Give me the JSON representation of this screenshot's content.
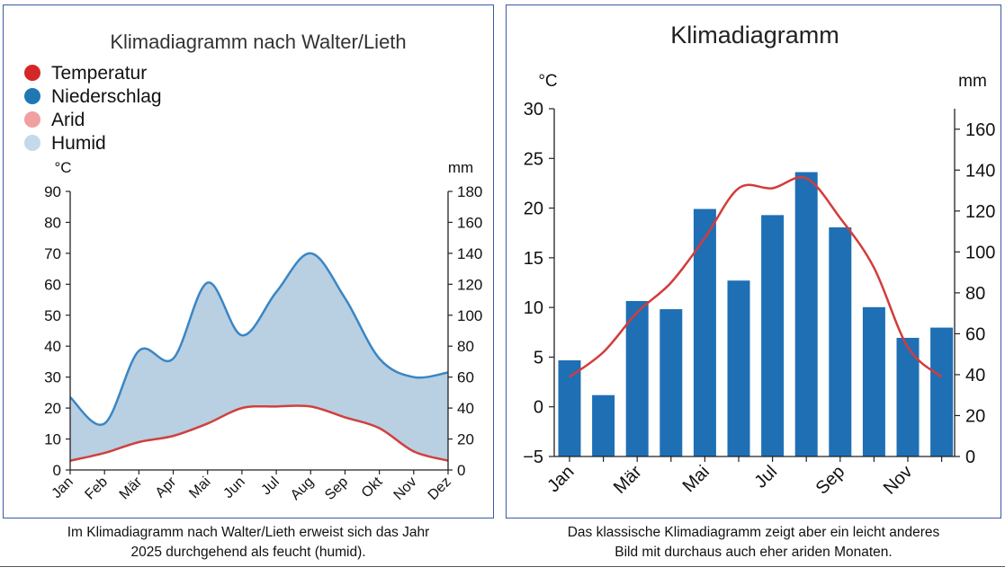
{
  "left_caption": {
    "line1": "Im Klimadiagramm nach Walter/Lieth erweist sich das Jahr",
    "line2": "2025 durchgehend als feucht (humid)."
  },
  "right_caption": {
    "line1": "Das klassische Klimadiagramm zeigt aber ein leicht anderes",
    "line2": "Bild mit durchaus auch eher ariden Monaten."
  },
  "chart_data": [
    {
      "type": "area",
      "title": "Klimadiagramm nach Walter/Lieth",
      "legend": [
        {
          "label": "Temperatur",
          "color": "#d62728"
        },
        {
          "label": "Niederschlag",
          "color": "#1f77b4"
        },
        {
          "label": "Arid",
          "color": "#f0a0a0"
        },
        {
          "label": "Humid",
          "color": "#c4d9ea"
        }
      ],
      "legend_position": "top-left",
      "categories": [
        "Jan",
        "Feb",
        "Mär",
        "Apr",
        "Mai",
        "Jun",
        "Jul",
        "Aug",
        "Sep",
        "Okt",
        "Nov",
        "Dez"
      ],
      "y_left_label": "°C",
      "y_right_label": "mm",
      "y_left_lim": [
        0,
        90
      ],
      "y_right_lim": [
        0,
        180
      ],
      "y_left_ticks": [
        0,
        10,
        20,
        30,
        40,
        50,
        60,
        70,
        80,
        90
      ],
      "y_right_ticks": [
        0,
        20,
        40,
        60,
        80,
        100,
        120,
        140,
        160,
        180
      ],
      "series": [
        {
          "name": "Temperatur",
          "axis": "left",
          "values": [
            3,
            5.5,
            9,
            11,
            15,
            20,
            20.5,
            20.5,
            17,
            13.5,
            6,
            3
          ]
        },
        {
          "name": "Niederschlag",
          "axis": "right",
          "values": [
            47,
            30,
            77,
            72,
            121,
            87,
            115,
            140,
            111,
            72,
            60,
            63
          ]
        }
      ],
      "colors": {
        "temperature": "#d0403e",
        "precipitation": "#3a86c4",
        "humid_fill": "#b9cfe2"
      }
    },
    {
      "type": "bar",
      "title": "Klimadiagramm",
      "categories": [
        "Jan",
        "Feb",
        "Mär",
        "Apr",
        "Mai",
        "Jun",
        "Jul",
        "Aug",
        "Sep",
        "Okt",
        "Nov",
        "Dez"
      ],
      "tick_labels_shown": [
        "Jan",
        "Mär",
        "Mai",
        "Jul",
        "Sep",
        "Nov"
      ],
      "y_left_label": "°C",
      "y_right_label": "mm",
      "y_left_lim": [
        -5,
        30
      ],
      "y_right_lim": [
        0,
        170
      ],
      "y_left_ticks": [
        -5,
        0,
        5,
        10,
        15,
        20,
        25,
        30
      ],
      "y_right_ticks": [
        0,
        20,
        40,
        60,
        80,
        100,
        120,
        140,
        160
      ],
      "y_right_tick_labels": [
        "0",
        "20",
        "40",
        "60",
        "80",
        "100",
        "120",
        "140",
        "160"
      ],
      "series": [
        {
          "name": "Niederschlag",
          "type": "bar",
          "axis": "right",
          "values": [
            47,
            30,
            76,
            72,
            121,
            86,
            118,
            139,
            112,
            73,
            58,
            63
          ]
        },
        {
          "name": "Temperatur",
          "type": "line",
          "axis": "left",
          "values": [
            3,
            5.5,
            9.5,
            12.5,
            17,
            22,
            22,
            23,
            19,
            14,
            6,
            3
          ]
        }
      ],
      "colors": {
        "bar": "#1f6fb5",
        "line": "#d43b3b"
      }
    }
  ]
}
